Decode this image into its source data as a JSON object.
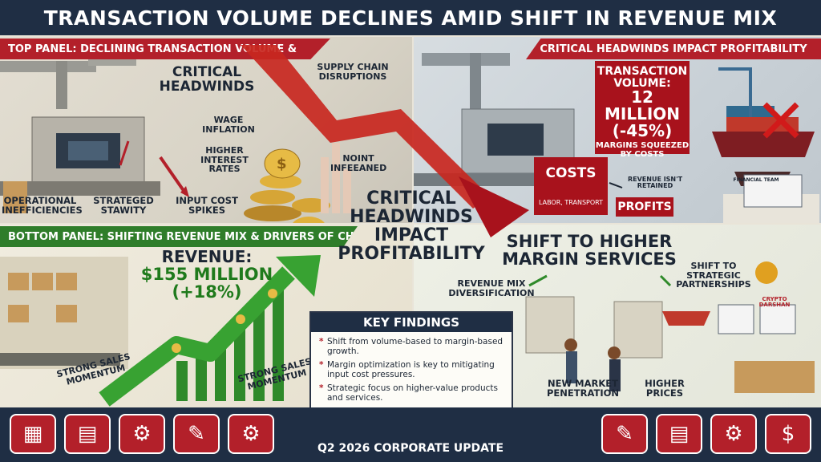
{
  "title": "TRANSACTION VOLUME DECLINES AMID SHIFT IN REVENUE MIX",
  "top_left": {
    "banner": "TOP PANEL: DECLINING TRANSACTION VOLUME &",
    "critical": "CRITICAL HEADWINDS",
    "supply_chain": "SUPPLY CHAIN DISRUPTIONS",
    "wage": "WAGE INFLATION",
    "interest": "HIGHER INTEREST RATES",
    "noint": "NOINT INFEEANED",
    "operational": "OPERATIONAL INEFFICIENCIES",
    "strateged": "STRATEGED STAWITY",
    "input_cost": "INPUT COST SPIKES"
  },
  "top_right": {
    "banner": "CRITICAL HEADWINDS IMPACT PROFITABILITY",
    "stat_title": "TRANSACTION VOLUME:",
    "stat_value": "12 MILLION",
    "stat_change": "(-45%)",
    "stat_note": "MARGINS SQUEEZED BY COSTS",
    "costs": "COSTS",
    "costs_sub": "LABOR, TRANSPORT",
    "revenue_not_retained": "REVENUE ISN'T RETAINED",
    "profits": "PROFITS",
    "financial_team": "FINANCIAL TEAM"
  },
  "center": {
    "label": "CRITICAL HEADWINDS IMPACT PROFITABILITY"
  },
  "bottom_left": {
    "banner": "BOTTOM PANEL: SHIFTING REVENUE MIX & DRIVERS OF CHANGE",
    "revenue_title": "REVENUE:",
    "revenue_value": "$155 MILLION",
    "revenue_change": "(+18%)",
    "momentum_1": "STRONG SALES MOMENTUM",
    "momentum_2": "STRONG SALES MOMENTUM"
  },
  "key_findings": {
    "title": "KEY FINDINGS",
    "items": [
      "Shift from volume-based to margin-based growth.",
      "Margin optimization is key to mitigating input cost pressures.",
      "Strategic focus on higher-value products and services."
    ]
  },
  "bottom_right": {
    "headline": "SHIFT TO HIGHER MARGIN SERVICES",
    "revenue_mix": "REVENUE MIX DIVERSIFICATION",
    "partnerships": "SHIFT TO STRATEGIC PARTNERSHIPS",
    "new_market": "NEW MARKET PENETRATION",
    "higher_prices": "HIGHER PRICES",
    "crypto": "CRYPTO DARSHAN"
  },
  "footer": {
    "caption": "Q2 2026 CORPORATE UPDATE",
    "icons_left": [
      "calculator-icon",
      "spreadsheet-icon",
      "factory-icon",
      "clipboard-icon",
      "gear-dollar-icon"
    ],
    "icons_right": [
      "clipboard-chart-icon",
      "bar-chart-icon",
      "gear-icon",
      "report-dollar-icon"
    ]
  },
  "colors": {
    "navy": "#1f2e44",
    "red": "#b3202a",
    "green": "#2f7d2a"
  }
}
